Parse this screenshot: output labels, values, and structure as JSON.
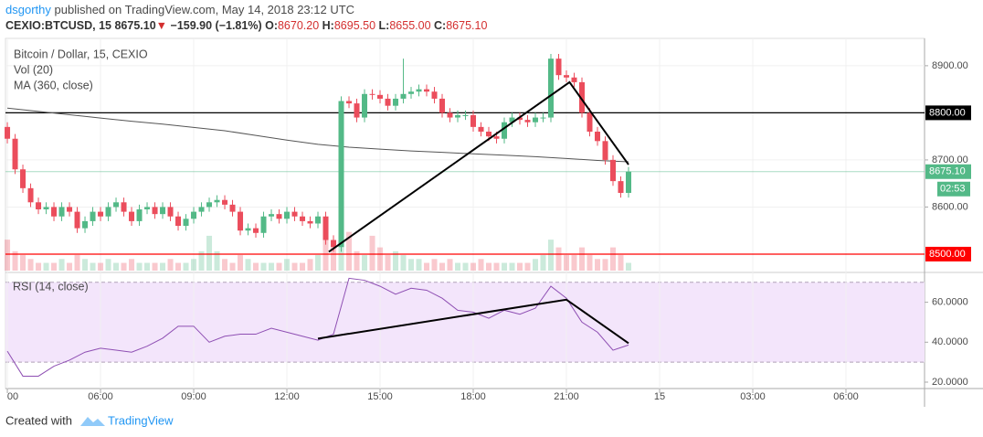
{
  "header": {
    "author": "dsgorthy",
    "published": "published on TradingView.com, May 14, 2018 23:12 UTC",
    "symbol": "CEXIO:BTCUSD, 15",
    "price": "8675.10",
    "arrow": "▼",
    "change": "−159.90 (−1.81%)",
    "o_label": "O:",
    "o": "8670.20",
    "h_label": "H:",
    "h": "8695.50",
    "l_label": "L:",
    "l": "8655.00",
    "c_label": "C:",
    "c": "8675.10"
  },
  "footer": {
    "created": "Created with",
    "brand": "TradingView"
  },
  "chart_data": [
    {
      "type": "candlestick",
      "legend": [
        "Bitcoin / Dollar, 15, CEXIO",
        "Vol (20)",
        "MA (360, close)"
      ],
      "up_color": "#53b987",
      "down_color": "#eb4d5c",
      "x": [
        3,
        3.25,
        3.5,
        3.75,
        4,
        4.25,
        4.5,
        4.75,
        5,
        5.25,
        5.5,
        5.75,
        6,
        6.25,
        6.5,
        6.75,
        7,
        7.25,
        7.5,
        7.75,
        8,
        8.25,
        8.5,
        8.75,
        9,
        9.25,
        9.5,
        9.75,
        10,
        10.25,
        10.5,
        10.75,
        11,
        11.25,
        11.5,
        11.75,
        12,
        12.25,
        12.5,
        12.75,
        13,
        13.25,
        13.5,
        13.75,
        14,
        14.25,
        14.5,
        14.75,
        15,
        15.25,
        15.5,
        15.75,
        16,
        16.25,
        16.5,
        16.75,
        17,
        17.25,
        17.5,
        17.75,
        18,
        18.25,
        18.5,
        18.75,
        19,
        19.25,
        19.5,
        19.75,
        20,
        20.25,
        20.5,
        20.75,
        21,
        21.25,
        21.5,
        21.75,
        22,
        22.25,
        22.5,
        22.75,
        23
      ],
      "open": [
        8770,
        8745,
        8680,
        8640,
        8610,
        8595,
        8600,
        8580,
        8600,
        8590,
        8555,
        8570,
        8590,
        8580,
        8600,
        8610,
        8590,
        8570,
        8595,
        8600,
        8585,
        8600,
        8580,
        8560,
        8575,
        8590,
        8600,
        8610,
        8615,
        8605,
        8590,
        8550,
        8555,
        8545,
        8580,
        8585,
        8575,
        8590,
        8580,
        8570,
        8565,
        8580,
        8530,
        8515,
        8825,
        8820,
        8790,
        8840,
        8838,
        8830,
        8815,
        8830,
        8840,
        8845,
        8850,
        8845,
        8830,
        8800,
        8790,
        8795,
        8795,
        8770,
        8760,
        8750,
        8745,
        8780,
        8790,
        8785,
        8780,
        8790,
        8790,
        8915,
        8880,
        8875,
        8865,
        8800,
        8760,
        8740,
        8700,
        8655,
        8630
      ],
      "high": [
        8780,
        8755,
        8690,
        8650,
        8620,
        8610,
        8610,
        8610,
        8610,
        8600,
        8580,
        8600,
        8600,
        8610,
        8620,
        8620,
        8600,
        8605,
        8610,
        8610,
        8610,
        8610,
        8590,
        8585,
        8600,
        8610,
        8620,
        8625,
        8625,
        8615,
        8600,
        8565,
        8565,
        8590,
        8595,
        8595,
        8600,
        8600,
        8590,
        8580,
        8590,
        8590,
        8540,
        8835,
        8835,
        8830,
        8850,
        8850,
        8848,
        8840,
        8840,
        8915,
        8855,
        8860,
        8860,
        8855,
        8840,
        8810,
        8805,
        8805,
        8805,
        8780,
        8770,
        8760,
        8790,
        8800,
        8800,
        8795,
        8800,
        8800,
        8925,
        8925,
        8890,
        8885,
        8875,
        8810,
        8770,
        8750,
        8710,
        8665,
        8685
      ],
      "low": [
        8735,
        8670,
        8630,
        8600,
        8585,
        8585,
        8570,
        8570,
        8580,
        8545,
        8545,
        8560,
        8570,
        8570,
        8590,
        8580,
        8560,
        8560,
        8585,
        8575,
        8575,
        8570,
        8550,
        8550,
        8565,
        8580,
        8590,
        8600,
        8595,
        8580,
        8540,
        8540,
        8535,
        8535,
        8570,
        8565,
        8565,
        8570,
        8560,
        8555,
        8555,
        8520,
        8505,
        8505,
        8810,
        8780,
        8780,
        8828,
        8820,
        8805,
        8805,
        8820,
        8830,
        8835,
        8835,
        8820,
        8790,
        8780,
        8780,
        8785,
        8760,
        8750,
        8740,
        8735,
        8735,
        8770,
        8775,
        8770,
        8770,
        8780,
        8780,
        8870,
        8865,
        8855,
        8790,
        8750,
        8730,
        8690,
        8645,
        8620,
        8620
      ],
      "close": [
        8745,
        8680,
        8640,
        8610,
        8595,
        8600,
        8580,
        8600,
        8590,
        8555,
        8570,
        8590,
        8580,
        8600,
        8610,
        8590,
        8570,
        8595,
        8600,
        8585,
        8600,
        8580,
        8560,
        8575,
        8590,
        8600,
        8610,
        8615,
        8605,
        8590,
        8550,
        8555,
        8545,
        8580,
        8585,
        8575,
        8590,
        8580,
        8570,
        8565,
        8580,
        8530,
        8515,
        8825,
        8820,
        8790,
        8840,
        8838,
        8830,
        8815,
        8830,
        8840,
        8845,
        8850,
        8845,
        8830,
        8800,
        8790,
        8795,
        8795,
        8770,
        8760,
        8750,
        8745,
        8780,
        8790,
        8785,
        8780,
        8790,
        8790,
        8915,
        8880,
        8875,
        8865,
        8800,
        8760,
        8740,
        8700,
        8655,
        8630,
        8675.1
      ],
      "volume": [
        8,
        5,
        4,
        3,
        2,
        2,
        2,
        3,
        2,
        4,
        3,
        2,
        2,
        3,
        2,
        2,
        3,
        2,
        2,
        2,
        2,
        3,
        2,
        2,
        3,
        5,
        9,
        5,
        3,
        2,
        4,
        3,
        2,
        2,
        2,
        2,
        3,
        2,
        2,
        3,
        4,
        9,
        6,
        18,
        10,
        5,
        4,
        9,
        6,
        4,
        5,
        4,
        3,
        3,
        2,
        3,
        2,
        3,
        2,
        2,
        2,
        3,
        2,
        2,
        2,
        2,
        2,
        2,
        3,
        4,
        8,
        6,
        4,
        4,
        6,
        4,
        3,
        3,
        6,
        4,
        2
      ],
      "vlim": [
        0,
        60
      ],
      "ma": {
        "x": [
          3,
          4,
          5,
          6,
          7,
          8,
          9,
          10,
          11,
          12,
          13,
          14,
          15,
          16,
          17,
          18,
          19,
          20,
          21,
          22,
          23
        ],
        "values": [
          8810,
          8803,
          8796,
          8789,
          8782,
          8776,
          8769,
          8762,
          8752,
          8742,
          8733,
          8727,
          8723,
          8719,
          8716,
          8713,
          8710,
          8707,
          8703,
          8699,
          8696
        ],
        "color": "#555555"
      },
      "levels": [
        {
          "value": 8800,
          "label": "8800.00",
          "color": "#000000"
        },
        {
          "value": 8500,
          "label": "8500.00",
          "color": "#ff0000"
        }
      ],
      "last_price": {
        "value": 8675.1,
        "label": "8675.10",
        "countdown": "02:53",
        "color": "#53b987"
      },
      "trendline": {
        "x": [
          13.35,
          21.1,
          23
        ],
        "values": [
          8505,
          8865,
          8690
        ]
      },
      "xlim": [
        2.94,
        32.53
      ],
      "ylim": [
        8465,
        8958
      ],
      "yticks": [
        {
          "value": 8600,
          "label": "8600.00"
        },
        {
          "value": 8700,
          "label": "8700.00"
        },
        {
          "value": 8900,
          "label": "8900.00"
        }
      ],
      "xticks": [
        {
          "value": 3,
          "label": "00"
        },
        {
          "value": 6,
          "label": "06:00"
        },
        {
          "value": 9,
          "label": "09:00"
        },
        {
          "value": 12,
          "label": "12:00"
        },
        {
          "value": 15,
          "label": "15:00"
        },
        {
          "value": 18,
          "label": "18:00"
        },
        {
          "value": 21,
          "label": "21:00"
        },
        {
          "value": 24,
          "label": "15"
        },
        {
          "value": 27,
          "label": "03:00"
        },
        {
          "value": 30,
          "label": "06:00"
        }
      ]
    },
    {
      "type": "line",
      "legend": [
        "RSI (14, close)"
      ],
      "color": "#8e4fb3",
      "band": [
        30,
        70
      ],
      "x": [
        3,
        3.5,
        4,
        4.5,
        5,
        5.5,
        6,
        6.5,
        7,
        7.5,
        8,
        8.5,
        9,
        9.5,
        10,
        10.5,
        11,
        11.5,
        12,
        12.5,
        13,
        13.5,
        14,
        14.5,
        15,
        15.5,
        16,
        16.5,
        17,
        17.5,
        18,
        18.5,
        19,
        19.5,
        20,
        20.5,
        21,
        21.5,
        22,
        22.5,
        23
      ],
      "values": [
        35.5,
        23,
        23,
        28,
        31,
        35,
        37,
        36,
        35,
        38,
        42,
        48,
        48,
        40,
        43,
        44,
        44,
        47,
        45,
        43,
        41,
        44,
        72,
        71,
        68,
        64,
        67,
        66,
        62,
        56,
        55,
        52,
        56,
        54,
        57,
        68,
        62,
        50,
        45,
        36,
        38.6
      ],
      "trendline": {
        "x": [
          13,
          21,
          23
        ],
        "values": [
          41.8,
          61.3,
          39.5
        ]
      },
      "xlim": [
        2.94,
        32.53
      ],
      "ylim": [
        16.8,
        74
      ],
      "yticks": [
        {
          "value": 20,
          "label": "20.0000"
        },
        {
          "value": 40,
          "label": "40.0000"
        },
        {
          "value": 60,
          "label": "60.0000"
        }
      ]
    }
  ]
}
